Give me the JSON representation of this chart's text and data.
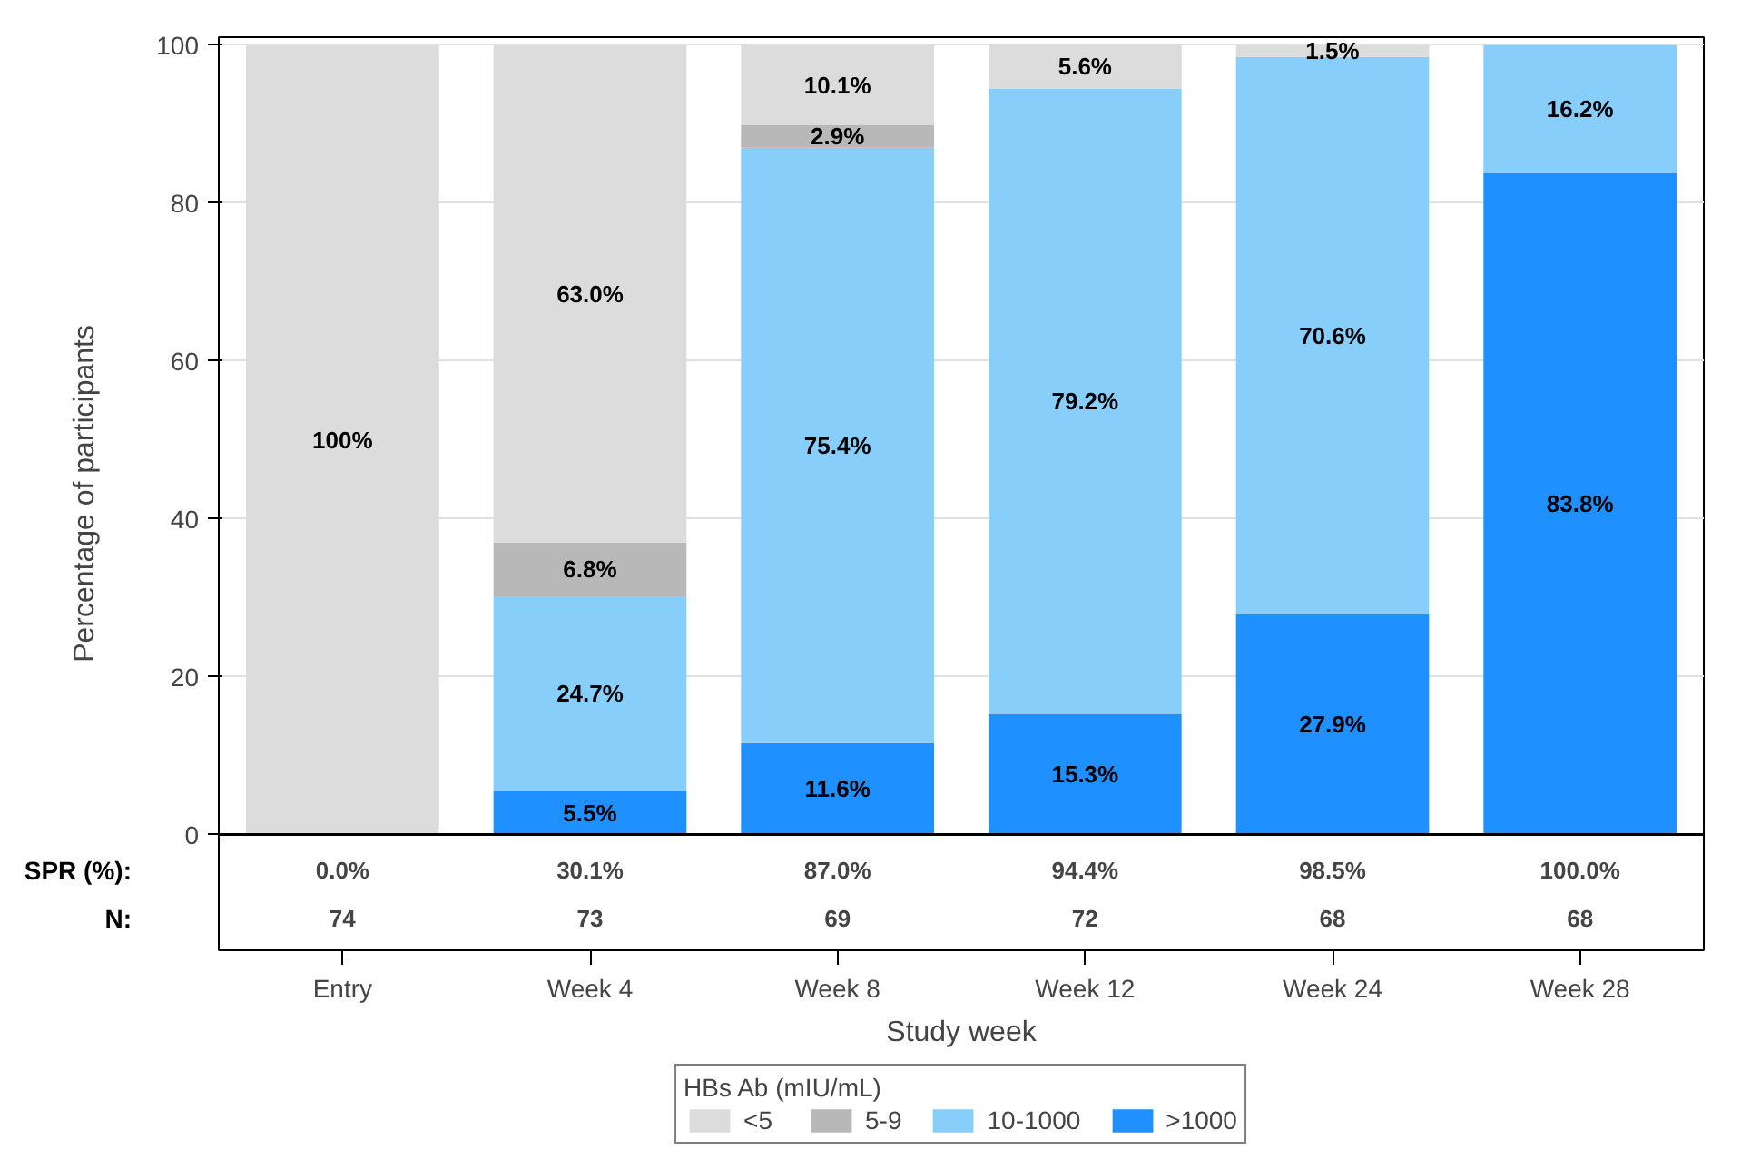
{
  "chart_data": {
    "type": "bar",
    "stacked": true,
    "xlabel": "Study week",
    "ylabel": "Percentage of participants",
    "legend_title": "HBs Ab (mIU/mL)",
    "categories": [
      "Entry",
      "Week 4",
      "Week 8",
      "Week 12",
      "Week 24",
      "Week 28"
    ],
    "series": [
      {
        "name": ">1000",
        "color": "#1e90ff",
        "values": [
          0,
          5.5,
          11.6,
          15.3,
          27.9,
          83.8
        ],
        "value_labels": [
          null,
          "5.5%",
          "11.6%",
          "15.3%",
          "27.9%",
          "83.8%"
        ]
      },
      {
        "name": "10-1000",
        "color": "#87cefa",
        "values": [
          0,
          24.7,
          75.4,
          79.2,
          70.6,
          16.2
        ],
        "value_labels": [
          null,
          "24.7%",
          "75.4%",
          "79.2%",
          "70.6%",
          "16.2%"
        ]
      },
      {
        "name": "5-9",
        "color": "#b8b8b8",
        "values": [
          0,
          6.8,
          2.9,
          0,
          0,
          0
        ],
        "value_labels": [
          null,
          "6.8%",
          "2.9%",
          null,
          null,
          null
        ]
      },
      {
        "name": "<5",
        "color": "#dcdcdc",
        "values": [
          100,
          63.0,
          10.1,
          5.6,
          1.5,
          0
        ],
        "value_labels": [
          "100%",
          "63.0%",
          "10.1%",
          "5.6%",
          "1.5%",
          null
        ]
      }
    ],
    "annotations": [
      "SPR (%):",
      "0.0%",
      "30.1%",
      "87.0%",
      "94.4%",
      "98.5%",
      "100.0%",
      "N:",
      "74",
      "73",
      "69",
      "72",
      "68",
      "68"
    ],
    "ylim": [
      0,
      101
    ],
    "yticks": [
      0,
      20,
      40,
      60,
      80,
      100
    ],
    "grid": "y",
    "legend": "bottom"
  }
}
